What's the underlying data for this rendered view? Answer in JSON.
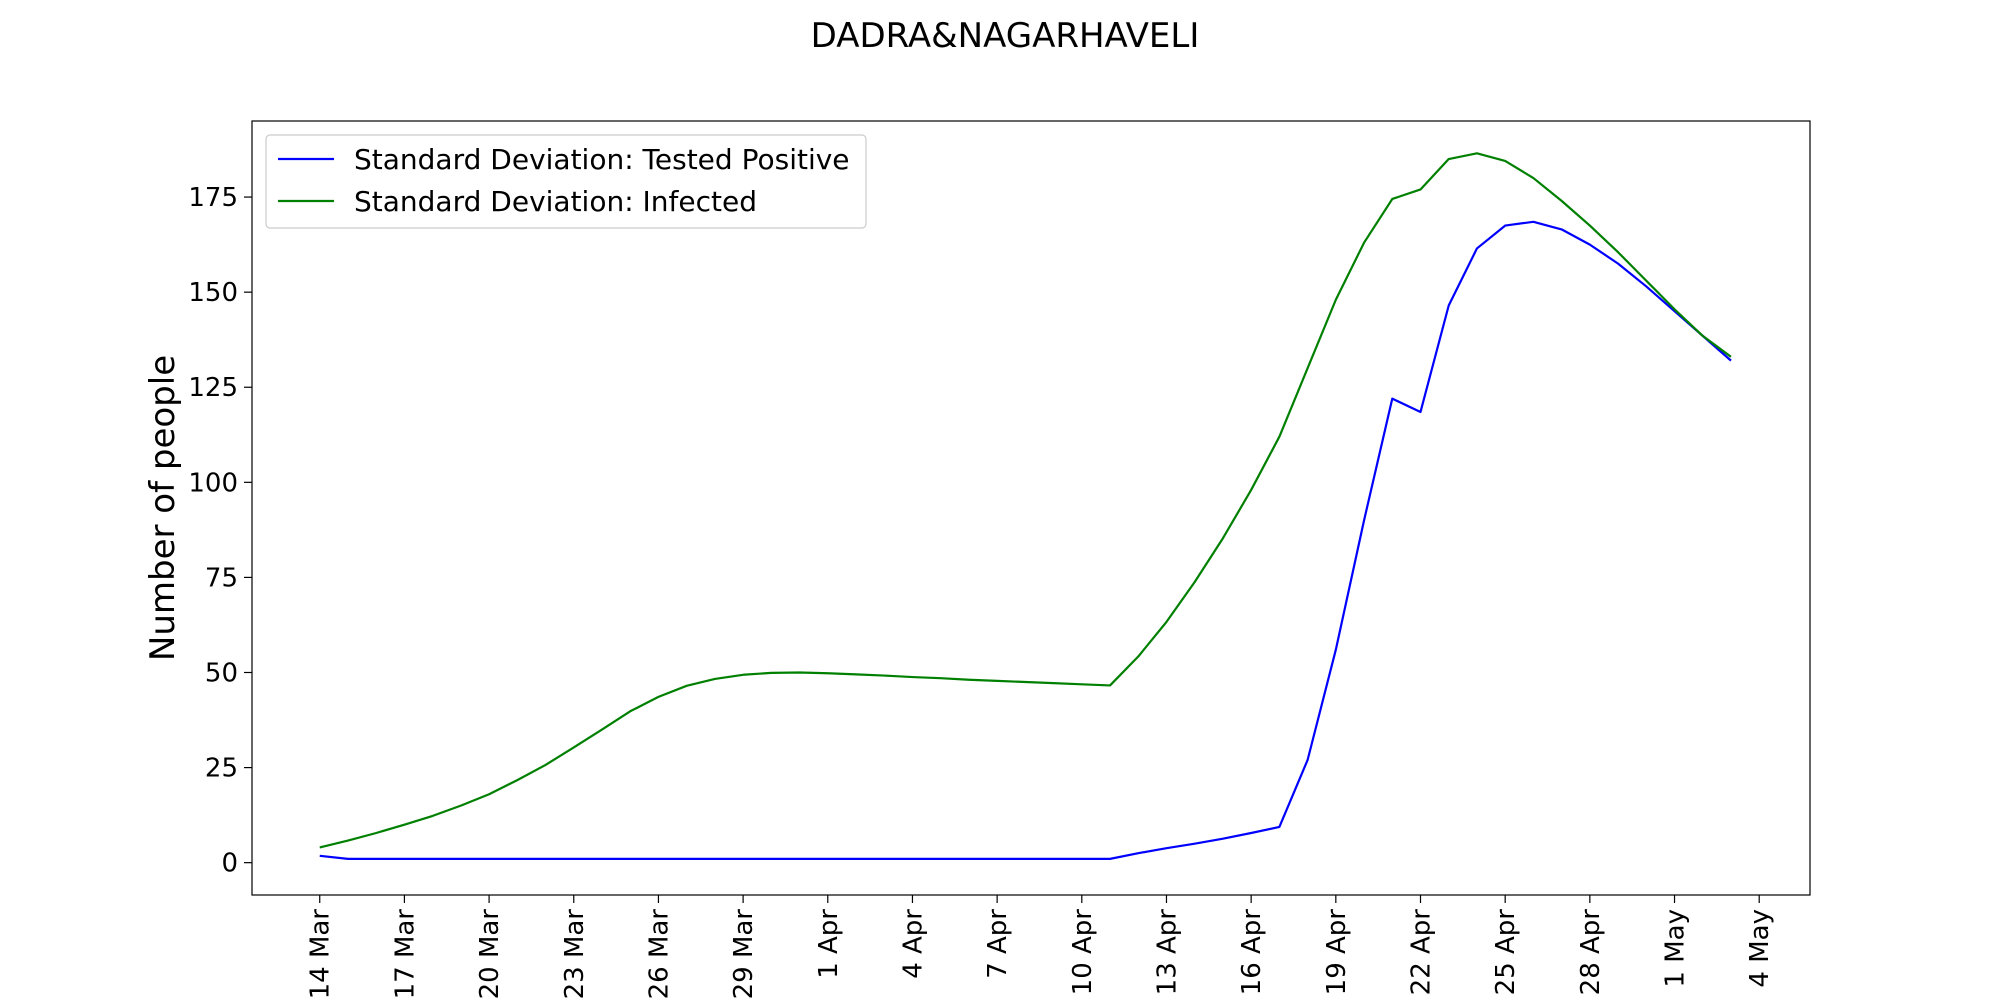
{
  "chart_data": {
    "type": "line",
    "title": "DADRA&NAGARHAVELI",
    "xlabel": "",
    "ylabel": "Number of people",
    "x_start": "2020-03-14",
    "x_tick_labels": [
      "14 Mar",
      "17 Mar",
      "20 Mar",
      "23 Mar",
      "26 Mar",
      "29 Mar",
      "1 Apr",
      "4 Apr",
      "7 Apr",
      "10 Apr",
      "13 Apr",
      "16 Apr",
      "19 Apr",
      "22 Apr",
      "25 Apr",
      "28 Apr",
      "1 May",
      "4 May"
    ],
    "x_tick_days": [
      0,
      3,
      6,
      9,
      12,
      15,
      18,
      21,
      24,
      27,
      30,
      33,
      36,
      39,
      42,
      45,
      48,
      51
    ],
    "xlim": [
      -2.4,
      52.8
    ],
    "ylim": [
      -8.5,
      195
    ],
    "y_ticks": [
      0,
      25,
      50,
      75,
      100,
      125,
      150,
      175
    ],
    "grid": false,
    "legend_position": "top-left",
    "series": [
      {
        "name": "Standard Deviation: Tested Positive",
        "color": "#0000ff",
        "x": [
          0,
          1,
          2,
          3,
          4,
          5,
          6,
          7,
          8,
          9,
          10,
          11,
          12,
          13,
          14,
          15,
          16,
          17,
          18,
          19,
          20,
          21,
          22,
          23,
          24,
          25,
          26,
          27,
          28,
          29,
          30,
          31,
          32,
          33,
          34,
          35,
          36,
          37,
          38,
          39,
          40,
          41,
          42,
          43,
          44,
          45,
          46,
          47,
          48,
          49,
          50
        ],
        "values": [
          1.8,
          1.0,
          1.0,
          1.0,
          1.0,
          1.0,
          1.0,
          1.0,
          1.0,
          1.0,
          1.0,
          1.0,
          1.0,
          1.0,
          1.0,
          1.0,
          1.0,
          1.0,
          1.0,
          1.0,
          1.0,
          1.0,
          1.0,
          1.0,
          1.0,
          1.0,
          1.0,
          1.0,
          1.0,
          2.5,
          3.8,
          5.0,
          6.3,
          7.8,
          9.4,
          27,
          56,
          90,
          122,
          118.5,
          146.5,
          161.5,
          167.5,
          168.5,
          166.5,
          162.5,
          157.5,
          151.5,
          145,
          138.5,
          132
        ]
      },
      {
        "name": "Standard Deviation: Infected",
        "color": "#008000",
        "x": [
          0,
          1,
          2,
          3,
          4,
          5,
          6,
          7,
          8,
          9,
          10,
          11,
          12,
          13,
          14,
          15,
          16,
          17,
          18,
          19,
          20,
          21,
          22,
          23,
          24,
          25,
          26,
          27,
          28,
          29,
          30,
          31,
          32,
          33,
          34,
          35,
          36,
          37,
          38,
          39,
          40,
          41,
          42,
          43,
          44,
          45,
          46,
          47,
          48,
          49,
          50
        ],
        "values": [
          4.0,
          5.8,
          7.8,
          10.0,
          12.3,
          15.0,
          18.0,
          21.7,
          25.7,
          30.3,
          35.0,
          39.8,
          43.6,
          46.5,
          48.3,
          49.4,
          49.9,
          50.0,
          49.8,
          49.5,
          49.2,
          48.8,
          48.5,
          48.1,
          47.8,
          47.5,
          47.2,
          46.9,
          46.6,
          54.2,
          63.3,
          73.8,
          85.3,
          98.0,
          112.0,
          130,
          148,
          163,
          174.5,
          177,
          185,
          186.5,
          184.5,
          180,
          174,
          167.5,
          160.5,
          153,
          145.5,
          138.5,
          133
        ]
      }
    ]
  }
}
